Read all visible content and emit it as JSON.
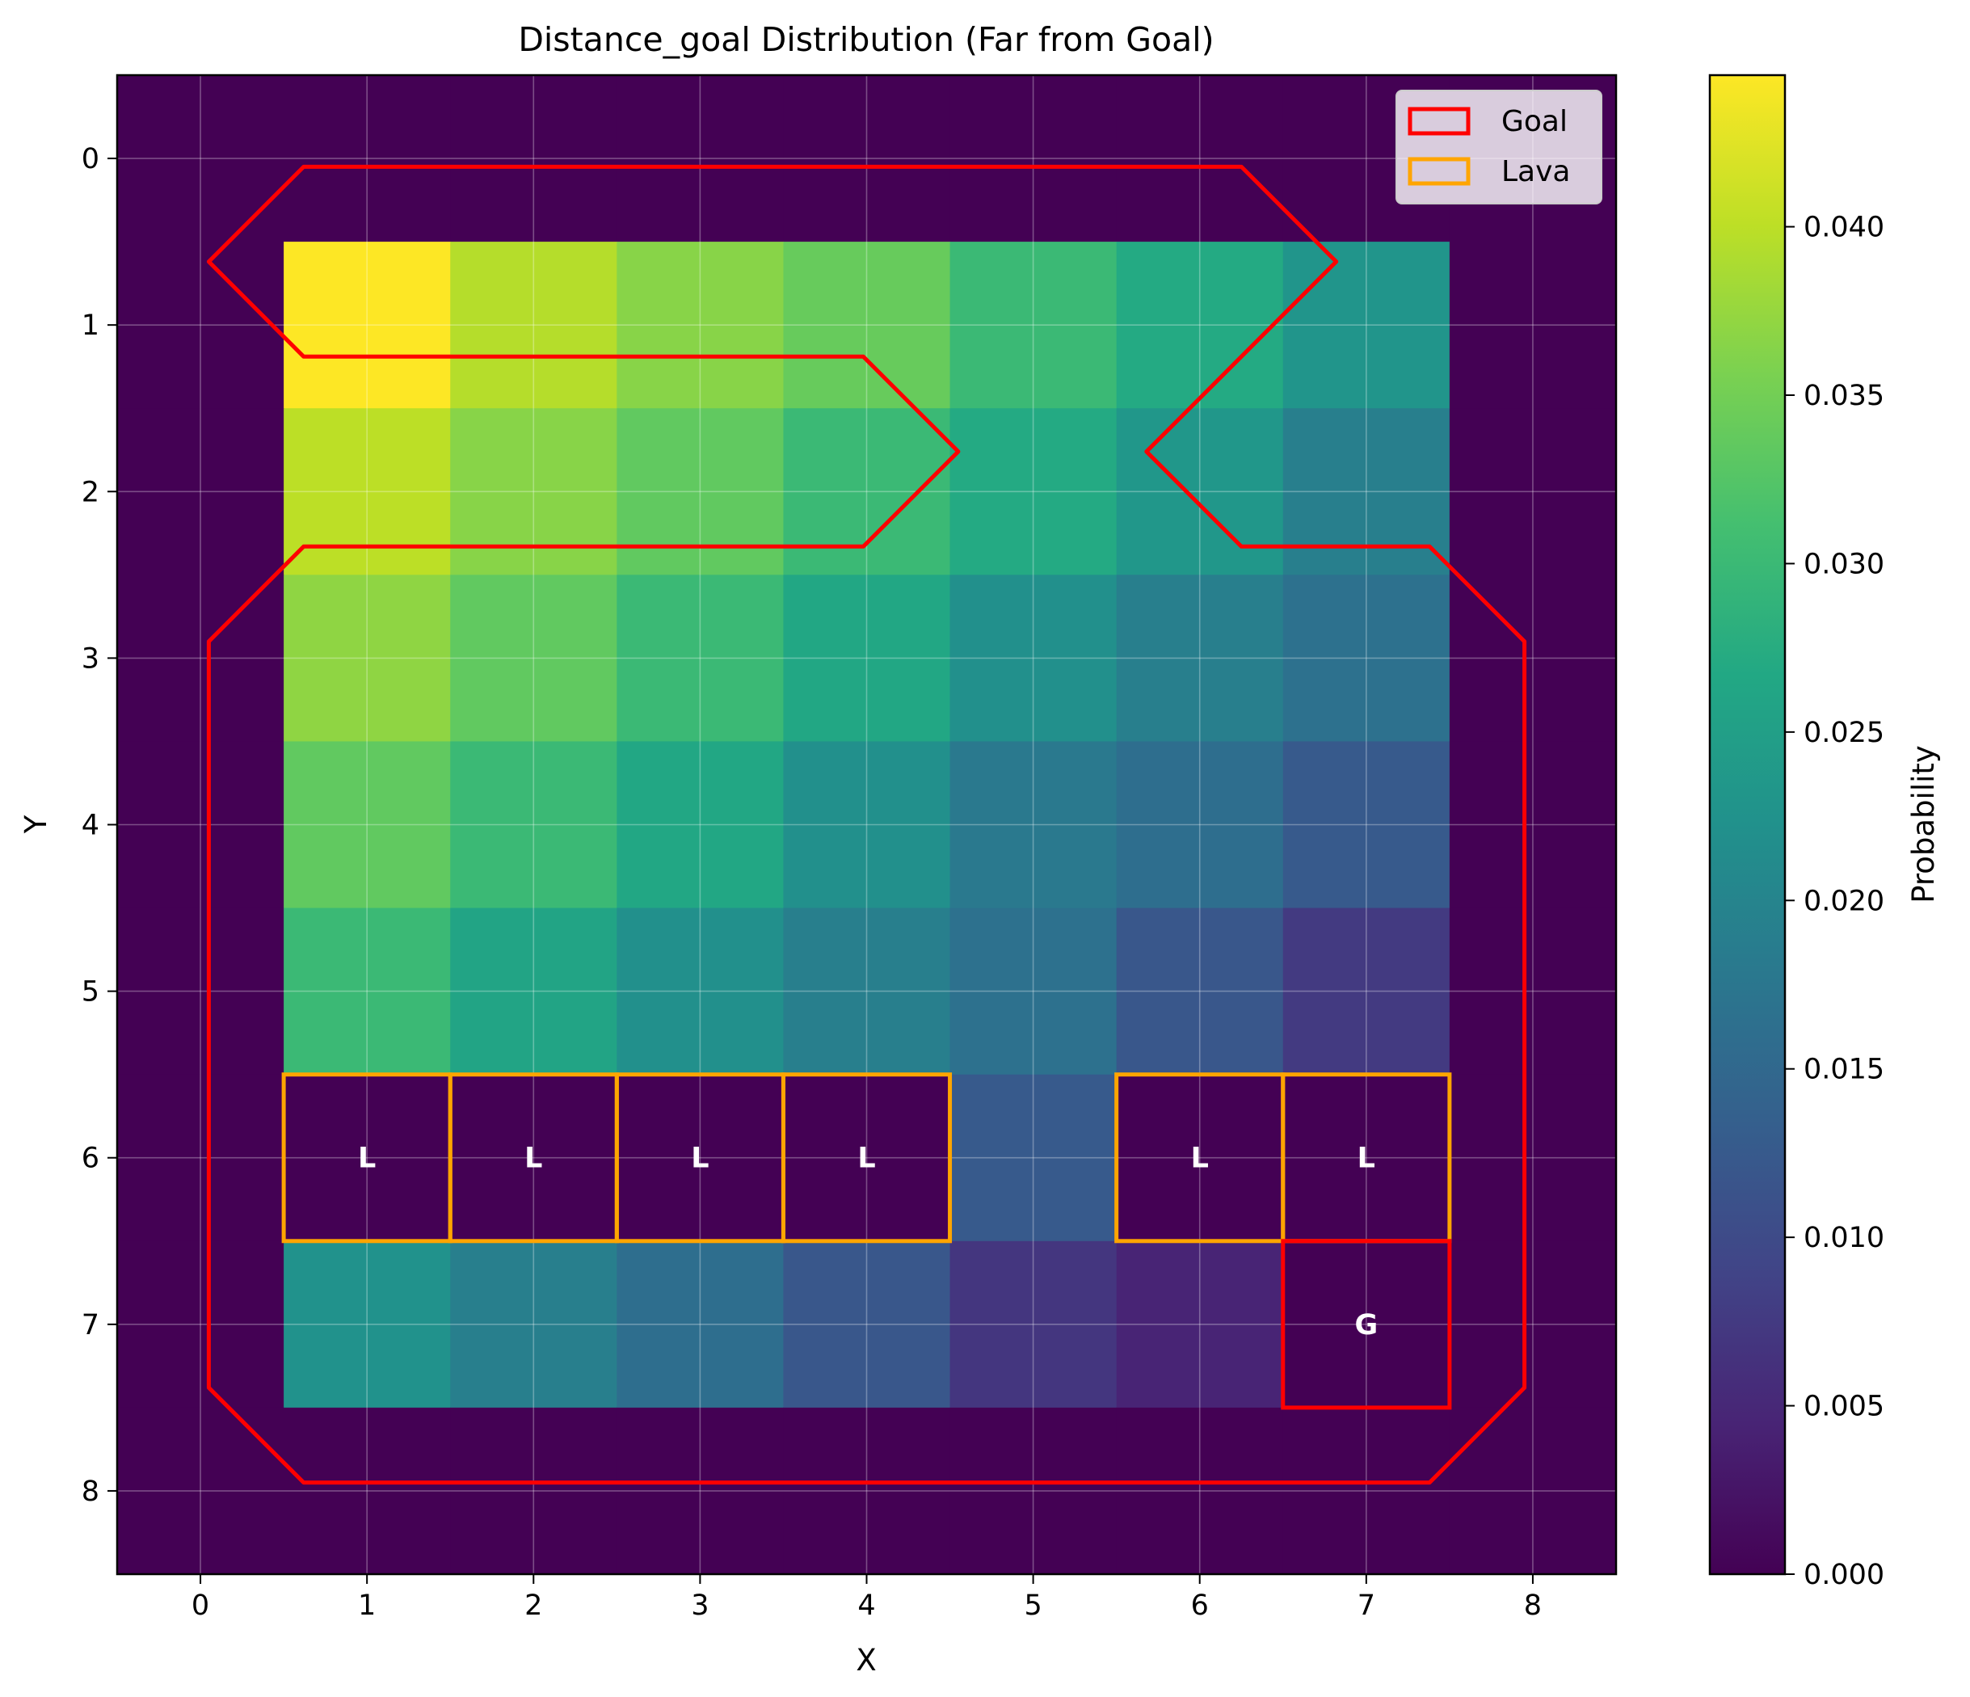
{
  "chart_data": {
    "type": "heatmap",
    "title": "Distance_goal Distribution (Far from Goal)",
    "xlabel": "X",
    "ylabel": "Y",
    "xlim": [
      -0.5,
      8.5
    ],
    "ylim": [
      8.5,
      -0.5
    ],
    "x_ticks": [
      0,
      1,
      2,
      3,
      4,
      5,
      6,
      7,
      8
    ],
    "y_ticks": [
      0,
      1,
      2,
      3,
      4,
      5,
      6,
      7,
      8
    ],
    "grid": true,
    "colormap": "viridis",
    "colorbar": {
      "label": "Probability",
      "range": [
        0.0,
        0.0445
      ],
      "ticks": [
        "0.000",
        "0.005",
        "0.010",
        "0.015",
        "0.020",
        "0.025",
        "0.030",
        "0.035",
        "0.040"
      ],
      "tick_values": [
        0.0,
        0.005,
        0.01,
        0.015,
        0.02,
        0.025,
        0.03,
        0.035,
        0.04
      ]
    },
    "grid_values": [
      [
        0,
        0,
        0,
        0,
        0,
        0,
        0,
        0,
        0
      ],
      [
        0,
        0.0445,
        0.0395,
        0.0365,
        0.034,
        0.03,
        0.027,
        0.023,
        0
      ],
      [
        0,
        0.04,
        0.0365,
        0.0335,
        0.03,
        0.027,
        0.0235,
        0.019,
        0
      ],
      [
        0,
        0.037,
        0.0335,
        0.03,
        0.0265,
        0.022,
        0.019,
        0.0165,
        0
      ],
      [
        0,
        0.0335,
        0.03,
        0.0265,
        0.022,
        0.018,
        0.016,
        0.0125,
        0
      ],
      [
        0,
        0.03,
        0.026,
        0.022,
        0.019,
        0.0165,
        0.012,
        0.0075,
        0
      ],
      [
        0,
        0,
        0,
        0,
        0,
        0.0125,
        0,
        0,
        0
      ],
      [
        0,
        0.0225,
        0.019,
        0.016,
        0.012,
        0.007,
        0.0045,
        0,
        0
      ],
      [
        0,
        0,
        0,
        0,
        0,
        0,
        0,
        0,
        0
      ]
    ],
    "lava_cells": [
      {
        "x": 1,
        "y": 6,
        "label": "L"
      },
      {
        "x": 2,
        "y": 6,
        "label": "L"
      },
      {
        "x": 3,
        "y": 6,
        "label": "L"
      },
      {
        "x": 4,
        "y": 6,
        "label": "L"
      },
      {
        "x": 6,
        "y": 6,
        "label": "L"
      },
      {
        "x": 7,
        "y": 6,
        "label": "L"
      }
    ],
    "goal_cell": {
      "x": 7,
      "y": 7,
      "label": "G"
    },
    "goal_outline": [
      [
        0.05,
        0.62
      ],
      [
        0.62,
        0.05
      ],
      [
        6.25,
        0.05
      ],
      [
        6.82,
        0.62
      ],
      [
        5.68,
        1.76
      ],
      [
        6.25,
        2.33
      ],
      [
        7.38,
        2.33
      ],
      [
        7.95,
        2.9
      ],
      [
        7.95,
        7.38
      ],
      [
        7.38,
        7.95
      ],
      [
        0.62,
        7.95
      ],
      [
        0.05,
        7.38
      ],
      [
        0.05,
        2.9
      ],
      [
        0.62,
        2.33
      ],
      [
        3.98,
        2.33
      ],
      [
        4.55,
        1.76
      ],
      [
        3.98,
        1.19
      ],
      [
        0.62,
        1.19
      ],
      [
        0.05,
        0.62
      ]
    ],
    "legend": {
      "position": "top-right",
      "entries": [
        {
          "label": "Goal",
          "color": "#ff0000"
        },
        {
          "label": "Lava",
          "color": "#ffa500"
        }
      ]
    },
    "colors": {
      "goal": "#ff0000",
      "lava": "#ffa500",
      "cell_text": "#ffffff",
      "background_cell": "#440154"
    }
  }
}
